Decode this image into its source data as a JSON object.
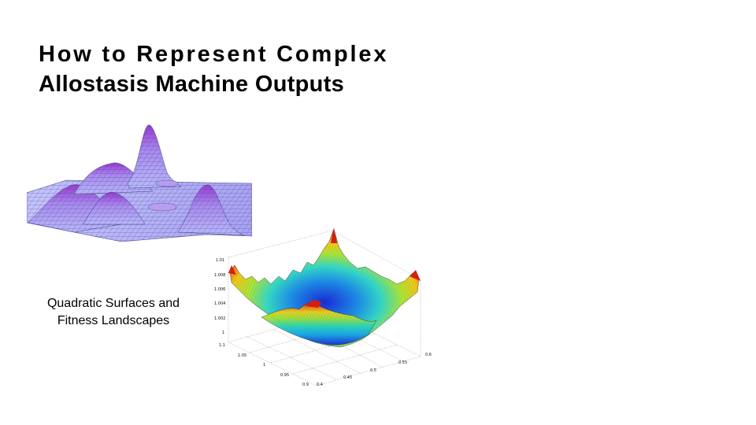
{
  "slide": {
    "title_line1": "How to Represent Complex",
    "title_line2": "Allostasis Machine Outputs",
    "caption_line1": "Quadratic Surfaces and",
    "caption_line2": "Fitness Landscapes"
  },
  "figure_3d": {
    "z_ticks": [
      "1.01",
      "1.008",
      "1.006",
      "1.004",
      "1.002",
      "1"
    ],
    "y_ticks": [
      "1.1",
      "1.05",
      "1",
      "0.95",
      "0.9"
    ],
    "x_ticks": [
      "0.4",
      "0.45",
      "0.5",
      "0.55",
      "0.6"
    ]
  },
  "colors": {
    "title": "#000000",
    "landscape_low": "#b8b8f8",
    "landscape_high": "#9a3bd0",
    "surface_low": "#1a2bd8",
    "surface_high": "#d42010"
  }
}
